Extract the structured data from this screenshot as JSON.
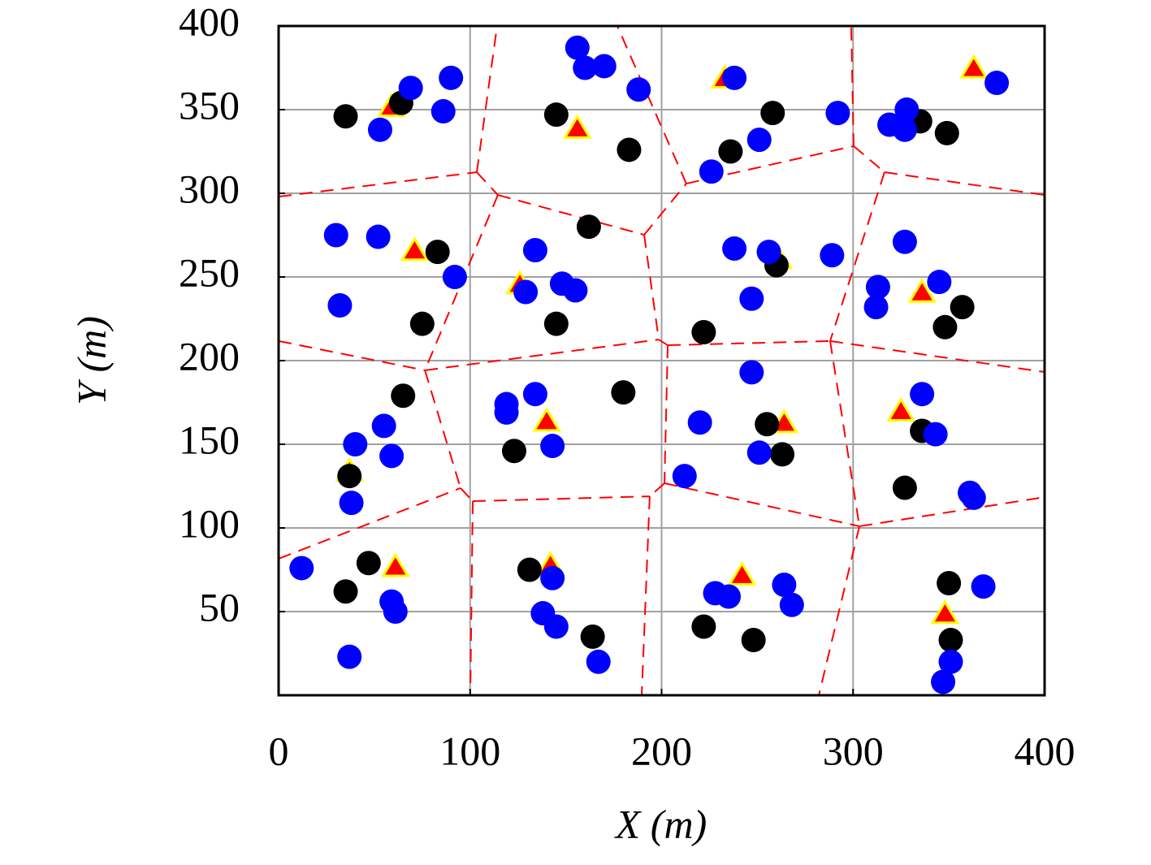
{
  "chart_data": {
    "type": "scatter",
    "xlabel": "X (m)",
    "ylabel": "Y (m)",
    "xlim": [
      0,
      400
    ],
    "ylim": [
      0,
      400
    ],
    "xticks": [
      0,
      100,
      200,
      300,
      400
    ],
    "yticks": [
      50,
      100,
      150,
      200,
      250,
      300,
      350,
      400
    ],
    "grid": true,
    "series": [
      {
        "color": "#ff0000",
        "edgecolor": "#ffff00",
        "marker": "triangle",
        "x": [
          59,
          156,
          233,
          363,
          71,
          126,
          261,
          336,
          37,
          140,
          264,
          325,
          61,
          142,
          242,
          348
        ],
        "y": [
          351,
          338,
          368,
          374,
          265,
          245,
          260,
          240,
          133,
          163,
          162,
          169,
          76,
          77,
          71,
          48
        ]
      },
      {
        "color": "#000000",
        "marker": "circle",
        "x": [
          35,
          64,
          145,
          183,
          258,
          236,
          335,
          349,
          83,
          75,
          162,
          145,
          260,
          222,
          357,
          348,
          65,
          37,
          123,
          180,
          255,
          263,
          336,
          327,
          47,
          35,
          131,
          164,
          222,
          248,
          350,
          351
        ],
        "y": [
          346,
          354,
          347,
          326,
          348,
          325,
          343,
          336,
          265,
          222,
          280,
          222,
          257,
          217,
          232,
          220,
          179,
          131,
          146,
          181,
          162,
          144,
          158,
          124,
          79,
          62,
          75,
          35,
          41,
          33,
          67,
          33
        ]
      },
      {
        "color": "#0000ff",
        "marker": "circle",
        "x": [
          69,
          53,
          90,
          86,
          156,
          160,
          170,
          188,
          238,
          251,
          226,
          292,
          328,
          319,
          327,
          375,
          30,
          52,
          92,
          32,
          134,
          129,
          148,
          155,
          238,
          256,
          247,
          289,
          327,
          313,
          312,
          345,
          40,
          55,
          59,
          38,
          119,
          119,
          134,
          143,
          220,
          247,
          251,
          212,
          336,
          343,
          361,
          363,
          12,
          59,
          61,
          37,
          143,
          138,
          145,
          167,
          228,
          235,
          264,
          268,
          368,
          351,
          347
        ],
        "y": [
          363,
          338,
          369,
          349,
          387,
          375,
          376,
          362,
          369,
          332,
          313,
          348,
          350,
          341,
          338,
          366,
          275,
          274,
          250,
          233,
          266,
          241,
          246,
          242,
          267,
          265,
          237,
          263,
          271,
          244,
          232,
          247,
          150,
          161,
          143,
          115,
          174,
          169,
          180,
          149,
          163,
          193,
          145,
          131,
          180,
          156,
          121,
          118,
          76,
          56,
          50,
          23,
          70,
          49,
          41,
          20,
          61,
          59,
          66,
          54,
          65,
          20,
          8
        ]
      }
    ],
    "edges": {
      "color": "#ff0000",
      "dashed": true,
      "segments": [
        [
          0,
          298,
          103.5,
          312.6
        ],
        [
          103.5,
          312.6,
          114.1,
          400
        ],
        [
          103.5,
          312.6,
          114.5,
          299
        ],
        [
          114.5,
          299,
          190.9,
          275.2
        ],
        [
          190.9,
          275.2,
          212.9,
          305.8
        ],
        [
          212.9,
          305.8,
          176.9,
          400
        ],
        [
          212.9,
          305.8,
          300.3,
          328.2
        ],
        [
          300.3,
          328.2,
          299,
          400
        ],
        [
          300.3,
          328.2,
          316.4,
          312.6
        ],
        [
          316.4,
          312.6,
          400,
          299
        ],
        [
          190.9,
          275.2,
          198.5,
          212.6
        ],
        [
          114.5,
          299,
          76.4,
          194.2
        ],
        [
          0,
          211.7,
          76.4,
          194.2
        ],
        [
          76.4,
          194.2,
          198.5,
          212.6
        ],
        [
          198.5,
          212.6,
          203.2,
          209.2
        ],
        [
          203.2,
          209.2,
          288,
          211.7
        ],
        [
          288,
          211.7,
          400,
          193.2
        ],
        [
          316.4,
          312.6,
          288,
          211.7
        ],
        [
          203.2,
          209.2,
          201.5,
          126.7
        ],
        [
          201.5,
          126.7,
          193.8,
          118.9
        ],
        [
          0,
          81.6,
          95,
          123.8
        ],
        [
          95,
          123.8,
          101.4,
          116
        ],
        [
          101.4,
          116,
          193.8,
          118.9
        ],
        [
          201.5,
          126.7,
          303.3,
          101
        ],
        [
          303.3,
          101,
          400,
          118.4
        ],
        [
          76.4,
          194.2,
          95,
          123.8
        ],
        [
          193.8,
          118.9,
          189.6,
          0
        ],
        [
          101.4,
          116,
          100.1,
          0
        ],
        [
          288,
          211.7,
          303.3,
          101
        ],
        [
          303.3,
          101,
          282.1,
          0
        ]
      ]
    }
  }
}
